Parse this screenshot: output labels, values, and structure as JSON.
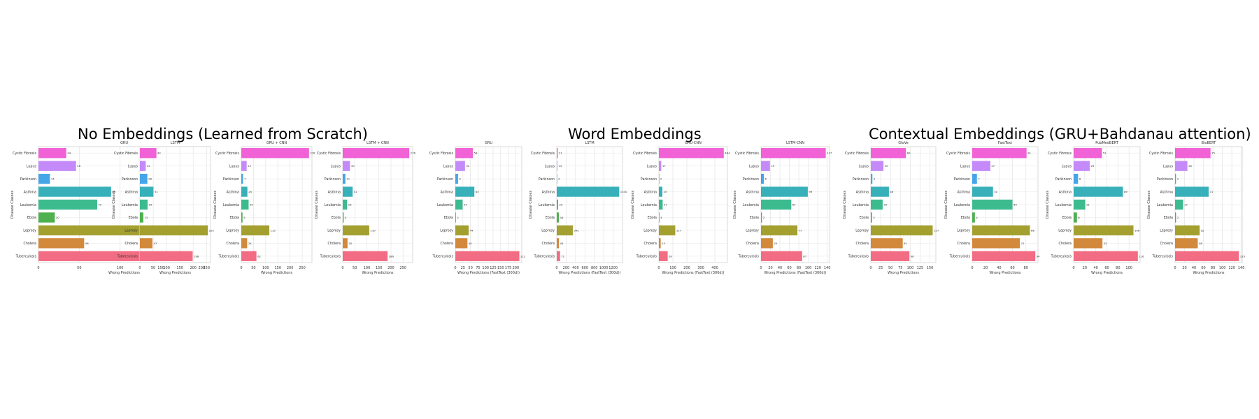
{
  "group_titles": [
    "No Embeddings (Learned from Scratch)",
    "Word Embeddings",
    "Contextual Embeddings (GRU+Bahdanau attention)"
  ],
  "colors": [
    "#f062d6",
    "#c58af9",
    "#44a5e8",
    "#38b0ba",
    "#3cbb8f",
    "#4fb04f",
    "#a3a030",
    "#d2893b",
    "#f26d83"
  ],
  "chart_data": [
    {
      "type": "bar",
      "orientation": "horizontal",
      "title": "GRU",
      "xlabel": "Wrong Predictions",
      "ylabel": "Disease Classes",
      "categories": [
        "Cystic Fibrosis",
        "Lupus",
        "Parkinson",
        "Asthma",
        "Leukemia",
        "Ebola",
        "Leprosy",
        "Cholera",
        "Tuberculosis"
      ],
      "values": [
        34,
        46,
        14,
        89,
        72,
        20,
        183,
        56,
        204
      ],
      "xlim": [
        0,
        210
      ],
      "xticks": [
        0,
        50,
        100,
        150,
        200
      ]
    },
    {
      "type": "bar",
      "orientation": "horizontal",
      "title": "LSTM",
      "xlabel": "Wrong Predictions",
      "ylabel": "Disease Classes",
      "categories": [
        "Cystic Fibrosis",
        "Lupus",
        "Parkinson",
        "Asthma",
        "Leukemia",
        "Ebola",
        "Leprosy",
        "Cholera",
        "Tuberculosis"
      ],
      "values": [
        62,
        22,
        28,
        51,
        29,
        13,
        255,
        47,
        198
      ],
      "xlim": [
        0,
        265
      ],
      "xticks": [
        0,
        50,
        100,
        150,
        200,
        250
      ]
    },
    {
      "type": "bar",
      "orientation": "horizontal",
      "title": "GRU + CNN",
      "xlabel": "Wrong Predictions",
      "ylabel": "Disease Classes",
      "categories": [
        "Cystic Fibrosis",
        "Lupus",
        "Parkinson",
        "Asthma",
        "Leukemia",
        "Ebola",
        "Leprosy",
        "Cholera",
        "Tuberculosis"
      ],
      "values": [
        278,
        22,
        7,
        25,
        30,
        5,
        115,
        24,
        62
      ],
      "xlim": [
        0,
        290
      ],
      "xticks": [
        0,
        50,
        100,
        150,
        200,
        250
      ]
    },
    {
      "type": "bar",
      "orientation": "horizontal",
      "title": "LSTM + CNN",
      "xlabel": "Wrong Predictions",
      "ylabel": "Disease Classes",
      "categories": [
        "Cystic Fibrosis",
        "Lupus",
        "Parkinson",
        "Asthma",
        "Leukemia",
        "Ebola",
        "Leprosy",
        "Cholera",
        "Tuberculosis"
      ],
      "values": [
        276,
        30,
        11,
        41,
        18,
        4,
        110,
        20,
        186
      ],
      "xlim": [
        0,
        290
      ],
      "xticks": [
        0,
        50,
        100,
        150,
        200,
        250
      ]
    },
    {
      "type": "bar",
      "orientation": "horizontal",
      "title": "GRU",
      "xlabel": "Wrong Predictions (FastText (300d))",
      "ylabel": "",
      "categories": [
        "Cystic Fibrosis",
        "Lupus",
        "Parkinson",
        "Asthma",
        "Leukemia",
        "Ebola",
        "Leprosy",
        "Cholera",
        "Tuberculosis"
      ],
      "values": [
        58,
        32,
        9,
        63,
        24,
        2,
        44,
        40,
        212
      ],
      "xlim": [
        0,
        220
      ],
      "xticks": [
        0,
        25,
        50,
        75,
        100,
        125,
        150,
        175,
        200
      ]
    },
    {
      "type": "bar",
      "orientation": "horizontal",
      "title": "LSTM",
      "xlabel": "Wrong Predictions (FastText (300d))",
      "ylabel": "Disease Classes",
      "categories": [
        "Cystic Fibrosis",
        "Lupus",
        "Parkinson",
        "Asthma",
        "Leukemia",
        "Ebola",
        "Leprosy",
        "Cholera",
        "Tuberculosis"
      ],
      "values": [
        21,
        13,
        4,
        1330,
        29,
        44,
        342,
        45,
        71
      ],
      "xlim": [
        0,
        1400
      ],
      "xticks": [
        0,
        200,
        400,
        600,
        800,
        1000,
        1200
      ]
    },
    {
      "type": "bar",
      "orientation": "horizontal",
      "title": "GRU-CNN",
      "xlabel": "Wrong Predictions (FastText (300d))",
      "ylabel": "Disease Classes",
      "categories": [
        "Cystic Fibrosis",
        "Lupus",
        "Parkinson",
        "Asthma",
        "Leukemia",
        "Ebola",
        "Leprosy",
        "Cholera",
        "Tuberculosis"
      ],
      "values": [
        464,
        17,
        2,
        25,
        27,
        4,
        117,
        13,
        63
      ],
      "xlim": [
        0,
        490
      ],
      "xticks": [
        0,
        100,
        200,
        300,
        400
      ]
    },
    {
      "type": "bar",
      "orientation": "horizontal",
      "title": "LSTM-CNN",
      "xlabel": "Wrong Predictions (FastText (300d))",
      "ylabel": "Disease Classes",
      "categories": [
        "Cystic Fibrosis",
        "Lupus",
        "Parkinson",
        "Asthma",
        "Leukemia",
        "Ebola",
        "Leprosy",
        "Cholera",
        "Tuberculosis"
      ],
      "values": [
        137,
        19,
        6,
        99,
        64,
        2,
        77,
        25,
        87
      ],
      "xlim": [
        0,
        145
      ],
      "xticks": [
        0,
        20,
        40,
        60,
        80,
        100,
        120,
        140
      ]
    },
    {
      "type": "bar",
      "orientation": "horizontal",
      "title": "GloVe",
      "xlabel": "Wrong Predictions",
      "ylabel": "Disease Classes",
      "categories": [
        "Cystic Fibrosis",
        "Lupus",
        "Parkinson",
        "Asthma",
        "Leukemia",
        "Ebola",
        "Leprosy",
        "Cholera",
        "Tuberculosis"
      ],
      "values": [
        89,
        32,
        4,
        46,
        30,
        3,
        157,
        81,
        98
      ],
      "xlim": [
        0,
        165
      ],
      "xticks": [
        0,
        25,
        50,
        75,
        100,
        125,
        150
      ]
    },
    {
      "type": "bar",
      "orientation": "horizontal",
      "title": "FastText",
      "xlabel": "Wrong Predictions",
      "ylabel": "Disease Classes",
      "categories": [
        "Cystic Fibrosis",
        "Lupus",
        "Parkinson",
        "Asthma",
        "Leukemia",
        "Ebola",
        "Leprosy",
        "Cholera",
        "Tuberculosis"
      ],
      "values": [
        81,
        27,
        7,
        31,
        60,
        4,
        86,
        71,
        94
      ],
      "xlim": [
        0,
        98
      ],
      "xticks": [
        0,
        20,
        40,
        60,
        80
      ]
    },
    {
      "type": "bar",
      "orientation": "horizontal",
      "title": "PubMedBERT",
      "xlabel": "Wrong Predictions",
      "ylabel": "Disease Classes",
      "categories": [
        "Cystic Fibrosis",
        "Lupus",
        "Parkinson",
        "Asthma",
        "Leukemia",
        "Ebola",
        "Leprosy",
        "Cholera",
        "Tuberculosis"
      ],
      "values": [
        51,
        29,
        8,
        89,
        21,
        6,
        108,
        52,
        116
      ],
      "xlim": [
        0,
        120
      ],
      "xticks": [
        0,
        20,
        40,
        60,
        80,
        100
      ]
    },
    {
      "type": "bar",
      "orientation": "horizontal",
      "title": "BioBERT",
      "xlabel": "Wrong Predictions",
      "ylabel": "Disease Classes",
      "categories": [
        "Cystic Fibrosis",
        "Lupus",
        "Parkinson",
        "Asthma",
        "Leukemia",
        "Ebola",
        "Leprosy",
        "Cholera",
        "Tuberculosis"
      ],
      "values": [
        75,
        26,
        2,
        71,
        17,
        2,
        52,
        48,
        135
      ],
      "xlim": [
        0,
        142
      ],
      "xticks": [
        0,
        20,
        40,
        60,
        80,
        100,
        120,
        140
      ]
    }
  ]
}
